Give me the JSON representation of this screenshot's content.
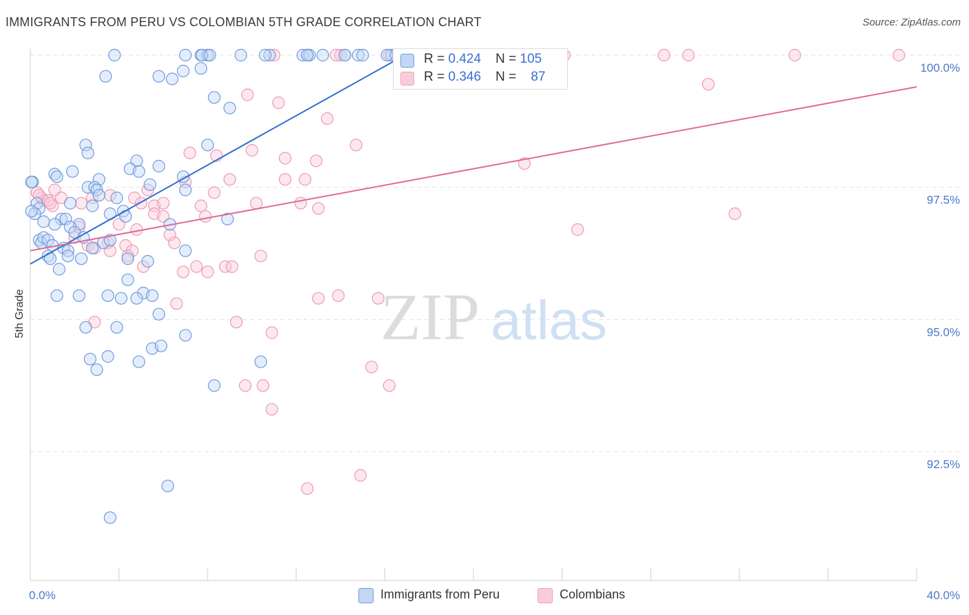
{
  "header": {
    "title": "IMMIGRANTS FROM PERU VS COLOMBIAN 5TH GRADE CORRELATION CHART",
    "source": "Source: ZipAtlas.com"
  },
  "watermark": {
    "zip": "ZIP",
    "atlas": "atlas"
  },
  "legend_top": [
    {
      "r_label": "R = ",
      "r_value": "0.424",
      "n_label": "N = ",
      "n_value": "105",
      "color": "#6f9be0"
    },
    {
      "r_label": "R = ",
      "r_value": "0.346",
      "n_label": "N = ",
      "n_value": "87",
      "color": "#f0a0b8"
    }
  ],
  "legend_bottom": [
    {
      "label": "Immigrants from Peru",
      "color": "#6f9be0"
    },
    {
      "label": "Colombians",
      "color": "#f0a0b8"
    }
  ],
  "chart_data": {
    "type": "scatter",
    "title": "IMMIGRANTS FROM PERU VS COLOMBIAN 5TH GRADE CORRELATION CHART",
    "xlabel": "",
    "ylabel": "5th Grade",
    "xlim": [
      0,
      40
    ],
    "ylim": [
      90,
      100.2
    ],
    "x_tick_labels": [
      "0.0%",
      "40.0%"
    ],
    "y_ticks": [
      92.5,
      95.0,
      97.5,
      100.0
    ],
    "y_tick_labels": [
      "92.5%",
      "95.0%",
      "97.5%",
      "100.0%"
    ],
    "grid": true,
    "legend_position": "top-center and bottom",
    "series": [
      {
        "name": "Immigrants from Peru",
        "color": "#6f9be0",
        "r": 0.424,
        "n": 105,
        "trend": {
          "x": [
            0,
            16.9
          ],
          "y": [
            96.05,
            100.0
          ]
        },
        "points": [
          [
            3.8,
            100.0
          ],
          [
            7.0,
            100.0
          ],
          [
            7.7,
            100.0
          ],
          [
            8.0,
            100.0
          ],
          [
            9.5,
            100.0
          ],
          [
            10.8,
            100.0
          ],
          [
            12.3,
            100.0
          ],
          [
            12.5,
            100.0
          ],
          [
            13.2,
            100.0
          ],
          [
            14.2,
            100.0
          ],
          [
            14.8,
            100.0
          ],
          [
            16.3,
            100.0
          ],
          [
            3.4,
            99.6
          ],
          [
            5.8,
            99.6
          ],
          [
            6.4,
            99.55
          ],
          [
            6.9,
            99.7
          ],
          [
            7.7,
            99.75
          ],
          [
            8.3,
            99.2
          ],
          [
            9.0,
            99.0
          ],
          [
            2.5,
            98.3
          ],
          [
            2.6,
            98.15
          ],
          [
            8.0,
            98.3
          ],
          [
            4.8,
            98.0
          ],
          [
            5.8,
            97.9
          ],
          [
            4.5,
            97.85
          ],
          [
            4.9,
            97.8
          ],
          [
            1.9,
            97.8
          ],
          [
            1.1,
            97.75
          ],
          [
            1.2,
            97.7
          ],
          [
            3.1,
            97.65
          ],
          [
            6.9,
            97.7
          ],
          [
            7.0,
            97.45
          ],
          [
            0.1,
            97.6
          ],
          [
            2.6,
            97.5
          ],
          [
            2.9,
            97.5
          ],
          [
            3.0,
            97.45
          ],
          [
            3.1,
            97.35
          ],
          [
            5.4,
            97.55
          ],
          [
            3.9,
            97.3
          ],
          [
            0.3,
            97.2
          ],
          [
            1.8,
            97.2
          ],
          [
            2.8,
            97.15
          ],
          [
            0.4,
            97.1
          ],
          [
            0.2,
            97.0
          ],
          [
            3.6,
            97.0
          ],
          [
            4.2,
            97.05
          ],
          [
            4.3,
            96.95
          ],
          [
            8.9,
            96.9
          ],
          [
            1.4,
            96.9
          ],
          [
            1.6,
            96.9
          ],
          [
            0.6,
            96.85
          ],
          [
            1.1,
            96.8
          ],
          [
            2.2,
            96.8
          ],
          [
            6.3,
            96.8
          ],
          [
            1.8,
            96.75
          ],
          [
            2.0,
            96.65
          ],
          [
            0.4,
            96.5
          ],
          [
            0.5,
            96.45
          ],
          [
            0.6,
            96.55
          ],
          [
            0.8,
            96.5
          ],
          [
            1.0,
            96.4
          ],
          [
            2.4,
            96.55
          ],
          [
            3.3,
            96.45
          ],
          [
            3.6,
            96.5
          ],
          [
            1.5,
            96.35
          ],
          [
            1.7,
            96.3
          ],
          [
            2.8,
            96.35
          ],
          [
            7.0,
            96.3
          ],
          [
            0.8,
            96.2
          ],
          [
            0.9,
            96.15
          ],
          [
            1.7,
            96.2
          ],
          [
            2.3,
            96.15
          ],
          [
            4.4,
            96.15
          ],
          [
            5.3,
            96.1
          ],
          [
            1.3,
            95.95
          ],
          [
            4.4,
            95.75
          ],
          [
            5.1,
            95.5
          ],
          [
            3.5,
            95.45
          ],
          [
            1.2,
            95.45
          ],
          [
            2.2,
            95.45
          ],
          [
            4.1,
            95.4
          ],
          [
            4.8,
            95.4
          ],
          [
            5.5,
            95.45
          ],
          [
            5.8,
            95.1
          ],
          [
            2.5,
            94.85
          ],
          [
            3.9,
            94.85
          ],
          [
            7.0,
            94.7
          ],
          [
            5.5,
            94.45
          ],
          [
            5.9,
            94.5
          ],
          [
            3.5,
            94.3
          ],
          [
            2.7,
            94.25
          ],
          [
            4.9,
            94.2
          ],
          [
            10.4,
            94.2
          ],
          [
            3.0,
            94.05
          ],
          [
            8.3,
            93.75
          ],
          [
            6.2,
            91.85
          ],
          [
            3.6,
            91.25
          ],
          [
            0.05,
            97.6
          ],
          [
            0.05,
            97.05
          ],
          [
            15.0,
            100.0
          ],
          [
            16.1,
            100.0
          ],
          [
            17.0,
            100.0
          ],
          [
            10.6,
            100.0
          ],
          [
            12.6,
            100.0
          ],
          [
            7.75,
            100.0
          ],
          [
            14.2,
            100.0
          ],
          [
            8.1,
            100.0
          ],
          [
            12.5,
            100.0
          ],
          [
            16.5,
            100.0
          ]
        ]
      },
      {
        "name": "Colombians",
        "color": "#f0a0b8",
        "r": 0.346,
        "n": 87,
        "trend": {
          "x": [
            0,
            40
          ],
          "y": [
            96.3,
            99.4
          ]
        },
        "points": [
          [
            11.0,
            100.0
          ],
          [
            14.0,
            100.0
          ],
          [
            16.2,
            100.0
          ],
          [
            24.1,
            100.0
          ],
          [
            28.6,
            100.0
          ],
          [
            29.7,
            100.0
          ],
          [
            34.5,
            100.0
          ],
          [
            39.2,
            100.0
          ],
          [
            30.6,
            99.45
          ],
          [
            9.8,
            99.25
          ],
          [
            11.2,
            99.1
          ],
          [
            13.4,
            98.8
          ],
          [
            14.7,
            98.3
          ],
          [
            7.2,
            98.15
          ],
          [
            8.4,
            98.1
          ],
          [
            10.0,
            98.2
          ],
          [
            11.5,
            98.05
          ],
          [
            12.9,
            98.0
          ],
          [
            22.3,
            97.95
          ],
          [
            9.0,
            97.65
          ],
          [
            11.5,
            97.65
          ],
          [
            12.4,
            97.65
          ],
          [
            5.3,
            97.45
          ],
          [
            7.0,
            97.6
          ],
          [
            8.3,
            97.4
          ],
          [
            1.1,
            97.45
          ],
          [
            1.4,
            97.3
          ],
          [
            2.8,
            97.3
          ],
          [
            3.6,
            97.35
          ],
          [
            4.7,
            97.3
          ],
          [
            0.5,
            97.3
          ],
          [
            0.6,
            97.25
          ],
          [
            1.0,
            97.15
          ],
          [
            2.3,
            97.2
          ],
          [
            5.0,
            97.2
          ],
          [
            5.6,
            97.15
          ],
          [
            6.0,
            97.2
          ],
          [
            7.7,
            97.15
          ],
          [
            10.2,
            97.2
          ],
          [
            12.2,
            97.2
          ],
          [
            13.0,
            97.1
          ],
          [
            31.8,
            97.0
          ],
          [
            5.6,
            97.0
          ],
          [
            6.0,
            96.95
          ],
          [
            7.9,
            96.95
          ],
          [
            4.0,
            96.8
          ],
          [
            2.2,
            96.75
          ],
          [
            4.8,
            96.7
          ],
          [
            6.3,
            96.6
          ],
          [
            24.7,
            96.7
          ],
          [
            2.0,
            96.55
          ],
          [
            2.6,
            96.4
          ],
          [
            3.5,
            96.45
          ],
          [
            4.3,
            96.4
          ],
          [
            6.5,
            96.45
          ],
          [
            2.9,
            96.35
          ],
          [
            3.6,
            96.3
          ],
          [
            4.6,
            96.3
          ],
          [
            4.4,
            96.2
          ],
          [
            10.4,
            96.2
          ],
          [
            5.1,
            96.0
          ],
          [
            7.5,
            96.0
          ],
          [
            8.8,
            96.0
          ],
          [
            9.1,
            96.0
          ],
          [
            6.9,
            95.9
          ],
          [
            8.0,
            95.9
          ],
          [
            13.0,
            95.4
          ],
          [
            13.9,
            95.45
          ],
          [
            15.7,
            95.4
          ],
          [
            6.6,
            95.3
          ],
          [
            2.9,
            94.95
          ],
          [
            9.3,
            94.95
          ],
          [
            10.9,
            94.75
          ],
          [
            15.4,
            94.1
          ],
          [
            16.2,
            93.75
          ],
          [
            9.7,
            93.75
          ],
          [
            10.5,
            93.75
          ],
          [
            10.9,
            93.3
          ],
          [
            14.9,
            92.05
          ],
          [
            12.5,
            91.8
          ],
          [
            0.3,
            97.4
          ],
          [
            0.4,
            97.35
          ],
          [
            0.8,
            97.25
          ],
          [
            0.9,
            97.2
          ],
          [
            13.8,
            100.0
          ],
          [
            17.5,
            100.0
          ],
          [
            23.5,
            100.0
          ]
        ]
      }
    ]
  }
}
